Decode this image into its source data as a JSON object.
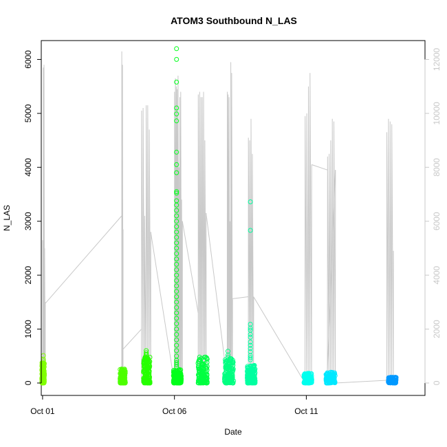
{
  "chart_data": {
    "type": "scatter",
    "title": "ATOM3 Southbound N_LAS",
    "xlabel": "Date",
    "ylabel": "N_LAS",
    "x_ticks": [
      {
        "label": "Oct 01",
        "day": 1
      },
      {
        "label": "Oct 06",
        "day": 6
      },
      {
        "label": "Oct 11",
        "day": 11
      }
    ],
    "xlim_days": [
      0.95,
      15.5
    ],
    "ylim": [
      -230,
      6350
    ],
    "y_ticks": [
      0,
      1000,
      2000,
      3000,
      4000,
      5000,
      6000
    ],
    "y2_ticks": [
      0,
      2000,
      4000,
      6000,
      8000,
      10000,
      12000
    ],
    "y2lim": [
      -460,
      12700
    ],
    "grid": false,
    "legend": "none",
    "line_color": "#c8c8c8",
    "scatter_series": [
      {
        "day": 1.0,
        "color": "#80ff00",
        "width": 0.1,
        "base_max": 380,
        "outliers": [
          510,
          440,
          410
        ]
      },
      {
        "day": 4.0,
        "color": "#4dff00",
        "width": 0.2,
        "base_max": 260,
        "outliers": []
      },
      {
        "day": 4.9,
        "color": "#26ff00",
        "width": 0.25,
        "base_max": 490,
        "outliers": [
          600,
          560,
          530,
          520
        ]
      },
      {
        "day": 6.05,
        "color": "#00ff1a",
        "width": 0.3,
        "base_max": 260,
        "outliers": [
          6200,
          6000,
          5580,
          5100,
          4990,
          4860,
          4280,
          4050,
          3900,
          3550,
          3520,
          3380,
          3300,
          3200,
          3100,
          3000,
          2900,
          2800,
          2700,
          2600,
          2500,
          2400,
          2300,
          2200,
          2100,
          2000,
          1900,
          1800,
          1700,
          1600,
          1500,
          1400,
          1300,
          1200,
          1100,
          1000,
          900,
          800,
          700,
          600,
          500,
          420,
          380,
          340,
          300
        ]
      },
      {
        "day": 7.0,
        "color": "#00ff40",
        "width": 0.35,
        "base_max": 490,
        "outliers": [
          300,
          320
        ]
      },
      {
        "day": 8.0,
        "color": "#00ff80",
        "width": 0.35,
        "base_max": 460,
        "outliers": [
          590,
          520,
          480
        ]
      },
      {
        "day": 8.85,
        "color": "#00ffa0",
        "width": 0.3,
        "base_max": 330,
        "outliers": [
          3360,
          2830,
          1090,
          1020,
          980,
          900,
          850,
          760,
          700,
          640,
          580,
          510,
          470,
          430
        ]
      },
      {
        "day": 11.0,
        "color": "#00ffee",
        "width": 0.3,
        "base_max": 180,
        "outliers": []
      },
      {
        "day": 11.85,
        "color": "#00e8ff",
        "width": 0.35,
        "base_max": 200,
        "outliers": []
      },
      {
        "day": 14.2,
        "color": "#0099ff",
        "width": 0.3,
        "base_max": 110,
        "outliers": []
      }
    ],
    "line_segments": [
      {
        "start": 1.0,
        "end": 1.1,
        "peaks": [
          5300,
          11700,
          11800,
          5000,
          3000
        ]
      },
      {
        "start": 4.0,
        "end": 4.05,
        "peaks": [
          12300,
          11800,
          5700
        ]
      },
      {
        "start": 4.75,
        "end": 5.1,
        "peaks": [
          10100,
          10200,
          6200,
          10300,
          10300,
          9400,
          5600
        ]
      },
      {
        "start": 6.0,
        "end": 6.3,
        "peaks": [
          10800,
          11300,
          11000,
          10900,
          11400,
          8000,
          10600,
          10800,
          6800,
          6000
        ]
      },
      {
        "start": 6.9,
        "end": 7.2,
        "peaks": [
          10700,
          10800,
          10600,
          10600,
          10800,
          9000,
          6300
        ]
      },
      {
        "start": 8.0,
        "end": 8.2,
        "peaks": [
          10800,
          10700,
          10600,
          6000,
          11900,
          11500,
          3100
        ]
      },
      {
        "start": 8.8,
        "end": 9.0,
        "peaks": [
          9100,
          9000,
          9800,
          8500,
          3200
        ]
      },
      {
        "start": 10.95,
        "end": 11.2,
        "peaks": [
          9900,
          10000,
          11000,
          11500,
          8100
        ]
      },
      {
        "start": 11.8,
        "end": 12.1,
        "peaks": [
          8400,
          8500,
          9000,
          9800,
          9700,
          7900
        ]
      },
      {
        "start": 14.05,
        "end": 14.3,
        "peaks": [
          9300,
          9800,
          9700,
          9600,
          4900
        ]
      }
    ],
    "line_connectors": [
      [
        1.1,
        2950,
        4.0,
        6200
      ],
      [
        4.05,
        5700,
        4.0,
        1200
      ],
      [
        4.0,
        1200,
        4.75,
        2000
      ],
      [
        5.1,
        5600,
        6.0,
        0
      ],
      [
        6.3,
        6000,
        6.9,
        2600
      ],
      [
        7.2,
        6300,
        8.0,
        100
      ],
      [
        8.0,
        3100,
        8.8,
        3200
      ],
      [
        9.0,
        3200,
        10.95,
        0
      ],
      [
        11.2,
        8100,
        11.8,
        7900
      ],
      [
        12.1,
        7900,
        11.8,
        500
      ],
      [
        12.1,
        0,
        14.05,
        100
      ]
    ]
  }
}
